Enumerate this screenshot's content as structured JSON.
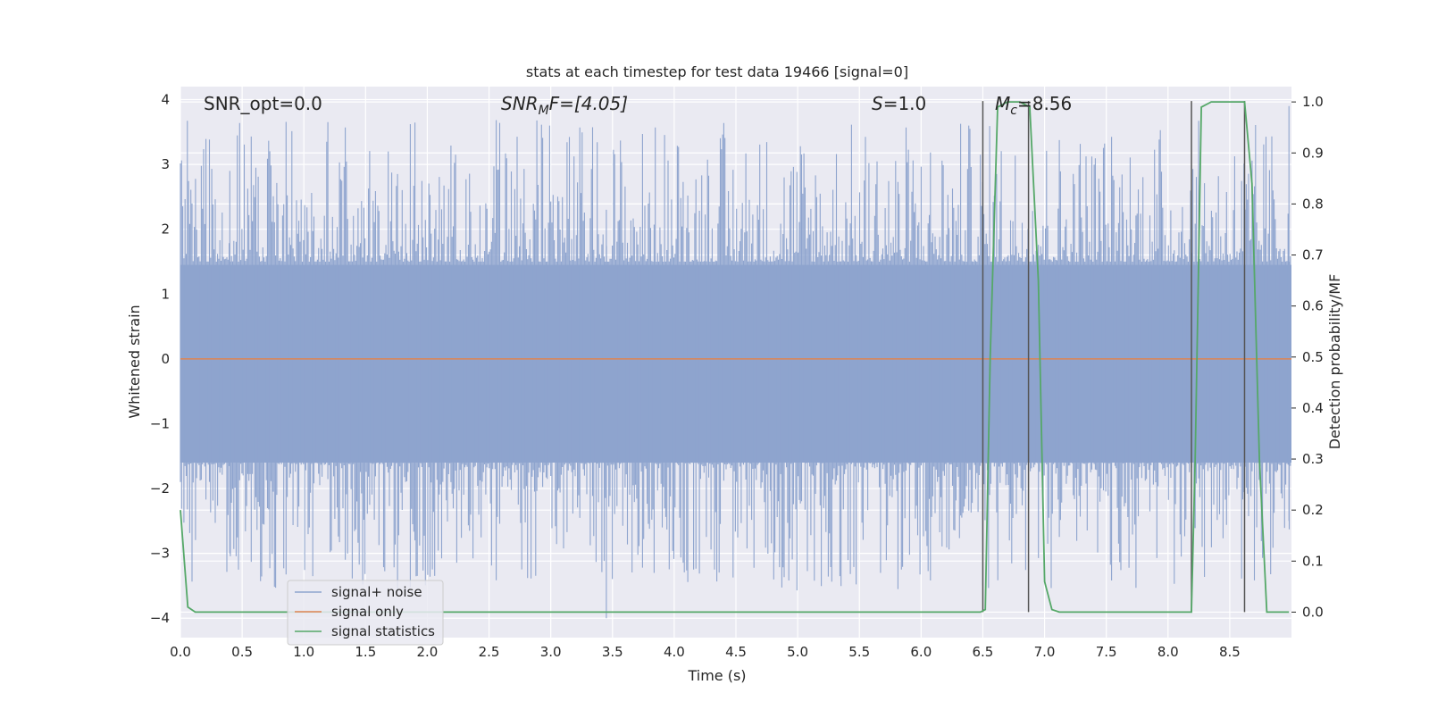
{
  "chart_data": {
    "type": "line",
    "title": "stats at each timestep for test data 19466 [signal=0]",
    "xlabel": "Time (s)",
    "ylabel": "Whitened strain",
    "ylabel_right": "Detection probability/MF",
    "xlim": [
      0.0,
      9.0
    ],
    "ylim": [
      -4.3,
      4.2
    ],
    "ylim_right": [
      -0.05,
      1.03
    ],
    "xticks": [
      "0.0",
      "0.5",
      "1.0",
      "1.5",
      "2.0",
      "2.5",
      "3.0",
      "3.5",
      "4.0",
      "4.5",
      "5.0",
      "5.5",
      "6.0",
      "6.5",
      "7.0",
      "7.5",
      "8.0",
      "8.5"
    ],
    "yticks": [
      "4",
      "3",
      "2",
      "1",
      "0",
      "−1",
      "−2",
      "−3",
      "−4"
    ],
    "yticks_right": [
      "1.0",
      "0.9",
      "0.8",
      "0.7",
      "0.6",
      "0.5",
      "0.4",
      "0.3",
      "0.2",
      "0.1",
      "0.0"
    ],
    "grid": true,
    "legend_position": "lower-left",
    "annotations": {
      "snr_opt": "SNR_opt=0.0",
      "snr_mf_base": "SNR",
      "snr_mf_sub": "M",
      "snr_mf_rest": "F=[4.05]",
      "s_italic": "S",
      "s_rest": "=1.0",
      "mc_base": "M",
      "mc_sub": "c",
      "mc_rest": "=8.56"
    },
    "colors": {
      "noise": "#8ea4ce",
      "signal_only": "#dd8452",
      "statistics": "#55a868",
      "vlines": "#555555",
      "background": "#eaeaf2"
    },
    "series": [
      {
        "name": "signal+ noise",
        "description_envelope": [
          {
            "t": 0.0,
            "min": -1.9,
            "max": 2.2
          },
          {
            "t": 0.4,
            "min": -3.0,
            "max": 2.9
          },
          {
            "t": 1.9,
            "min": -2.8,
            "max": 3.5
          },
          {
            "t": 3.45,
            "min": -4.0,
            "max": 2.3
          },
          {
            "t": 6.5,
            "min": -3.5,
            "max": 2.4
          },
          {
            "t": 8.98,
            "min": -2.5,
            "max": 3.9
          }
        ]
      },
      {
        "name": "signal only",
        "x": [
          0.0,
          9.0
        ],
        "y": [
          0.0,
          0.0
        ]
      },
      {
        "name": "signal statistics",
        "axis": "right",
        "x": [
          0.0,
          0.06,
          0.12,
          0.5,
          1.0,
          2.0,
          3.0,
          4.0,
          5.0,
          6.0,
          6.48,
          6.52,
          6.56,
          6.62,
          6.7,
          6.8,
          6.88,
          6.95,
          7.0,
          7.06,
          7.12,
          7.3,
          7.6,
          8.0,
          8.19,
          8.22,
          8.27,
          8.35,
          8.45,
          8.55,
          8.62,
          8.68,
          8.74,
          8.8,
          8.9,
          8.98
        ],
        "y": [
          0.2,
          0.01,
          0.0,
          0.0,
          0.0,
          0.0,
          0.0,
          0.0,
          0.0,
          0.0,
          0.0,
          0.005,
          0.5,
          0.99,
          1.0,
          1.0,
          0.99,
          0.65,
          0.06,
          0.005,
          0.0,
          0.0,
          0.0,
          0.0,
          0.0,
          0.3,
          0.99,
          1.0,
          1.0,
          1.0,
          1.0,
          0.84,
          0.3,
          0.0,
          0.0,
          0.0
        ]
      }
    ],
    "vertical_lines": [
      6.5,
      6.87,
      8.19,
      8.62
    ]
  }
}
